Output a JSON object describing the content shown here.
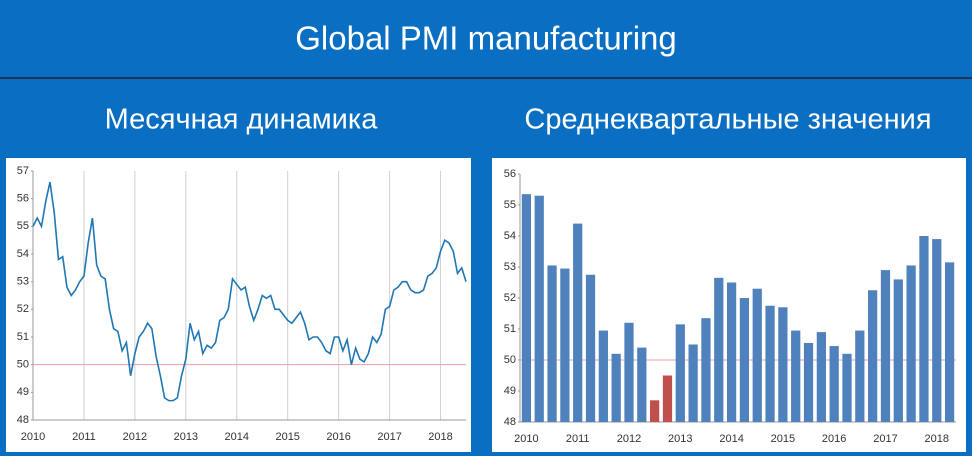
{
  "title": "Global PMI manufacturing",
  "chart_data": [
    {
      "type": "line",
      "title": "Месячная динамика",
      "categories": [
        "2010",
        null,
        null,
        null,
        null,
        null,
        null,
        null,
        null,
        null,
        null,
        null,
        "2011",
        null,
        null,
        null,
        null,
        null,
        null,
        null,
        null,
        null,
        null,
        null,
        "2012",
        null,
        null,
        null,
        null,
        null,
        null,
        null,
        null,
        null,
        null,
        null,
        "2013",
        null,
        null,
        null,
        null,
        null,
        null,
        null,
        null,
        null,
        null,
        null,
        "2014",
        null,
        null,
        null,
        null,
        null,
        null,
        null,
        null,
        null,
        null,
        null,
        "2015",
        null,
        null,
        null,
        null,
        null,
        null,
        null,
        null,
        null,
        null,
        null,
        "2016",
        null,
        null,
        null,
        null,
        null,
        null,
        null,
        null,
        null,
        null,
        null,
        "2017",
        null,
        null,
        null,
        null,
        null,
        null,
        null,
        null,
        null,
        null,
        null,
        "2018",
        null,
        null,
        null,
        null,
        null,
        null
      ],
      "values": [
        55.0,
        55.3,
        55.0,
        55.9,
        56.6,
        55.5,
        53.8,
        53.9,
        52.8,
        52.5,
        52.7,
        53.0,
        53.2,
        54.4,
        55.3,
        53.6,
        53.2,
        53.1,
        52.0,
        51.3,
        51.2,
        50.5,
        50.8,
        49.6,
        50.4,
        51.0,
        51.2,
        51.5,
        51.3,
        50.3,
        49.6,
        48.8,
        48.7,
        48.7,
        48.8,
        49.6,
        50.2,
        51.5,
        50.9,
        51.2,
        50.4,
        50.7,
        50.6,
        50.8,
        51.6,
        51.7,
        52.0,
        53.1,
        52.9,
        52.7,
        52.8,
        52.1,
        51.6,
        52.0,
        52.5,
        52.4,
        52.5,
        52.0,
        52.0,
        51.8,
        51.6,
        51.5,
        51.7,
        51.9,
        51.5,
        50.9,
        51.0,
        51.0,
        50.8,
        50.5,
        50.4,
        51.0,
        51.0,
        50.5,
        50.9,
        50.0,
        50.6,
        50.2,
        50.1,
        50.4,
        51.0,
        50.8,
        51.1,
        52.0,
        52.1,
        52.7,
        52.8,
        53.0,
        53.0,
        52.7,
        52.6,
        52.6,
        52.7,
        53.2,
        53.3,
        53.5,
        54.1,
        54.5,
        54.4,
        54.1,
        53.3,
        53.5,
        53.0
      ],
      "color": "#1f77b4",
      "ylim": [
        48,
        57
      ],
      "yticks": [
        48,
        49,
        50,
        51,
        52,
        53,
        54,
        55,
        56,
        57
      ],
      "hline": 50,
      "hline_color": "#e8a0a0",
      "vertical_grid": true
    },
    {
      "type": "bar",
      "title": "Среднеквартальные значения",
      "categories": [
        "2010",
        null,
        null,
        null,
        "2011",
        null,
        null,
        null,
        "2012",
        null,
        null,
        null,
        "2013",
        null,
        null,
        null,
        "2014",
        null,
        null,
        null,
        "2015",
        null,
        null,
        null,
        "2016",
        null,
        null,
        null,
        "2017",
        null,
        null,
        null,
        "2018",
        null
      ],
      "values": [
        55.35,
        55.3,
        53.05,
        52.95,
        54.4,
        52.75,
        50.95,
        50.2,
        51.2,
        50.4,
        48.7,
        49.5,
        51.15,
        50.5,
        51.35,
        52.65,
        52.5,
        52.0,
        52.3,
        51.75,
        51.7,
        50.95,
        50.55,
        50.9,
        50.45,
        50.2,
        50.95,
        52.25,
        52.9,
        52.6,
        53.05,
        54.0,
        53.9,
        53.15
      ],
      "colors": [
        "#4f81bd",
        "#4f81bd",
        "#4f81bd",
        "#4f81bd",
        "#4f81bd",
        "#4f81bd",
        "#4f81bd",
        "#4f81bd",
        "#4f81bd",
        "#4f81bd",
        "#c0504d",
        "#c0504d",
        "#4f81bd",
        "#4f81bd",
        "#4f81bd",
        "#4f81bd",
        "#4f81bd",
        "#4f81bd",
        "#4f81bd",
        "#4f81bd",
        "#4f81bd",
        "#4f81bd",
        "#4f81bd",
        "#4f81bd",
        "#4f81bd",
        "#4f81bd",
        "#4f81bd",
        "#4f81bd",
        "#4f81bd",
        "#4f81bd",
        "#4f81bd",
        "#4f81bd",
        "#4f81bd",
        "#4f81bd"
      ],
      "ylim": [
        48,
        56
      ],
      "yticks": [
        48,
        49,
        50,
        51,
        52,
        53,
        54,
        55,
        56
      ],
      "hline": 50,
      "hline_color": "#e8a0a0",
      "vertical_grid": false
    }
  ]
}
